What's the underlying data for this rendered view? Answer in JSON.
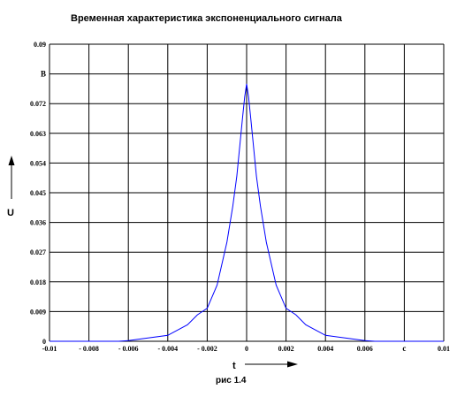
{
  "chart_data": {
    "type": "line",
    "title": "Временная характеристика экспоненциального сигнала",
    "xlabel": "t",
    "ylabel": "U",
    "x_unit": "c",
    "y_unit": "B",
    "caption": "рис 1.4",
    "xlim": [
      -0.01,
      0.01
    ],
    "ylim": [
      0,
      0.09
    ],
    "grid": true,
    "x_ticks": [
      "-0.01",
      "- 0.008",
      "- 0.006",
      "- 0.004",
      "- 0.002",
      "0",
      "0.002",
      "0.004",
      "0.006",
      "c",
      "0.01"
    ],
    "y_ticks": [
      "0",
      "0.009",
      "0.018",
      "0.027",
      "0.036",
      "0.045",
      "0.054",
      "0.063",
      "0.072",
      "B",
      "0.09"
    ],
    "series": [
      {
        "color": "#0000ff",
        "x": [
          -0.01,
          -0.008,
          -0.0065,
          -0.006,
          -0.005,
          -0.004,
          -0.003,
          -0.0025,
          -0.002,
          -0.0015,
          -0.001,
          -0.0007,
          -0.0005,
          -0.0003,
          -0.0002,
          -0.0001,
          0,
          0.0001,
          0.0002,
          0.0003,
          0.0005,
          0.0007,
          0.001,
          0.0015,
          0.002,
          0.0025,
          0.003,
          0.004,
          0.005,
          0.006,
          0.0065,
          0.008,
          0.01
        ],
        "y": [
          0,
          0,
          0,
          0.0002,
          0.001,
          0.0018,
          0.005,
          0.008,
          0.01,
          0.017,
          0.03,
          0.041,
          0.05,
          0.062,
          0.068,
          0.074,
          0.078,
          0.074,
          0.068,
          0.062,
          0.05,
          0.041,
          0.03,
          0.017,
          0.01,
          0.008,
          0.005,
          0.0018,
          0.001,
          0.0002,
          0,
          0,
          0
        ]
      }
    ]
  },
  "indicators": {
    "x_arrow": "→",
    "y_arrow": "↑"
  }
}
